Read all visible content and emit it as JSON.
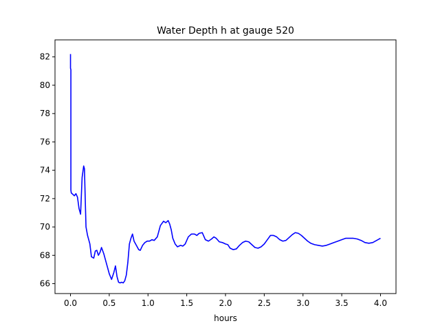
{
  "chart_data": {
    "type": "line",
    "title": "Water Depth h at gauge 520",
    "xlabel": "hours",
    "ylabel": "",
    "xlim": [
      -0.2,
      4.2
    ],
    "ylim": [
      65.3,
      83.2
    ],
    "xticks": [
      0.0,
      0.5,
      1.0,
      1.5,
      2.0,
      2.5,
      3.0,
      3.5,
      4.0
    ],
    "xtick_labels": [
      "0.0",
      "0.5",
      "1.0",
      "1.5",
      "2.0",
      "2.5",
      "3.0",
      "3.5",
      "4.0"
    ],
    "yticks": [
      66,
      68,
      70,
      72,
      74,
      76,
      78,
      80,
      82
    ],
    "ytick_labels": [
      "66",
      "68",
      "70",
      "72",
      "74",
      "76",
      "78",
      "80",
      "82"
    ],
    "grid": false,
    "series": [
      {
        "color": "#0000ff",
        "x": [
          0.0,
          0.0,
          0.005,
          0.005,
          0.01,
          0.03,
          0.05,
          0.07,
          0.09,
          0.11,
          0.13,
          0.15,
          0.17,
          0.18,
          0.19,
          0.2,
          0.22,
          0.25,
          0.27,
          0.3,
          0.32,
          0.34,
          0.36,
          0.38,
          0.4,
          0.43,
          0.46,
          0.5,
          0.53,
          0.56,
          0.58,
          0.6,
          0.62,
          0.64,
          0.66,
          0.68,
          0.7,
          0.72,
          0.74,
          0.76,
          0.78,
          0.8,
          0.82,
          0.85,
          0.88,
          0.9,
          0.93,
          0.96,
          0.99,
          1.02,
          1.05,
          1.08,
          1.12,
          1.16,
          1.2,
          1.23,
          1.26,
          1.28,
          1.3,
          1.32,
          1.35,
          1.38,
          1.42,
          1.45,
          1.48,
          1.52,
          1.56,
          1.6,
          1.63,
          1.66,
          1.7,
          1.74,
          1.78,
          1.82,
          1.85,
          1.88,
          1.92,
          1.96,
          2.0,
          2.03,
          2.06,
          2.1,
          2.14,
          2.18,
          2.22,
          2.26,
          2.3,
          2.34,
          2.38,
          2.42,
          2.46,
          2.5,
          2.54,
          2.58,
          2.62,
          2.66,
          2.7,
          2.74,
          2.78,
          2.82,
          2.86,
          2.9,
          2.94,
          2.98,
          3.02,
          3.06,
          3.1,
          3.15,
          3.2,
          3.25,
          3.3,
          3.35,
          3.4,
          3.45,
          3.5,
          3.55,
          3.6,
          3.65,
          3.7,
          3.75,
          3.8,
          3.85,
          3.9,
          3.95,
          4.0
        ],
        "y": [
          82.2,
          81.2,
          81.1,
          72.6,
          72.4,
          72.3,
          72.2,
          72.35,
          72.1,
          71.3,
          70.9,
          73.5,
          74.3,
          74.1,
          72.0,
          70.0,
          69.4,
          68.8,
          67.9,
          67.8,
          68.3,
          68.35,
          68.0,
          68.2,
          68.55,
          68.1,
          67.5,
          66.7,
          66.3,
          66.8,
          67.25,
          66.5,
          66.1,
          66.05,
          66.1,
          66.05,
          66.2,
          66.6,
          67.5,
          68.8,
          69.2,
          69.5,
          69.0,
          68.7,
          68.4,
          68.35,
          68.7,
          68.9,
          69.0,
          69.0,
          69.1,
          69.05,
          69.3,
          70.1,
          70.4,
          70.3,
          70.45,
          70.2,
          69.8,
          69.2,
          68.8,
          68.6,
          68.7,
          68.65,
          68.8,
          69.3,
          69.5,
          69.5,
          69.4,
          69.55,
          69.6,
          69.1,
          69.0,
          69.15,
          69.3,
          69.2,
          68.95,
          68.9,
          68.8,
          68.75,
          68.5,
          68.4,
          68.45,
          68.7,
          68.9,
          69.0,
          68.95,
          68.75,
          68.55,
          68.5,
          68.6,
          68.8,
          69.1,
          69.4,
          69.4,
          69.3,
          69.1,
          69.0,
          69.05,
          69.25,
          69.45,
          69.6,
          69.55,
          69.4,
          69.2,
          69.0,
          68.85,
          68.75,
          68.7,
          68.65,
          68.7,
          68.8,
          68.9,
          69.0,
          69.1,
          69.2,
          69.2,
          69.2,
          69.15,
          69.05,
          68.9,
          68.85,
          68.9,
          69.05,
          69.2
        ]
      }
    ]
  }
}
